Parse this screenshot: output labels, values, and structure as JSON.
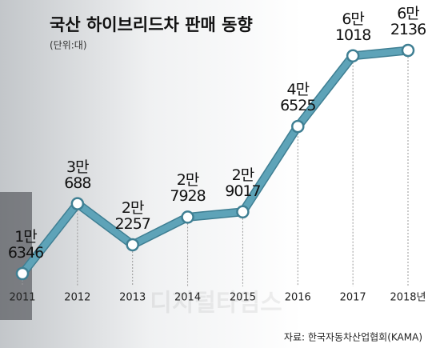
{
  "chart_data": {
    "type": "line",
    "title": "국산 하이브리드차 판매 동향",
    "subtitle": "(단위:대)",
    "source": "자료: 한국자동차산업협회(KAMA)",
    "watermark": "디지털타임스",
    "categories": [
      "2011",
      "2012",
      "2013",
      "2014",
      "2015",
      "2016",
      "2017",
      "2018년"
    ],
    "values": [
      16346,
      30688,
      22257,
      27928,
      29017,
      46525,
      61018,
      62136
    ],
    "value_labels": [
      "1만\n6346",
      "3만\n688",
      "2만\n2257",
      "2만\n7928",
      "2만\n9017",
      "4만\n6525",
      "6만\n1018",
      "6만\n2136"
    ],
    "color": "#5ea3b8"
  }
}
